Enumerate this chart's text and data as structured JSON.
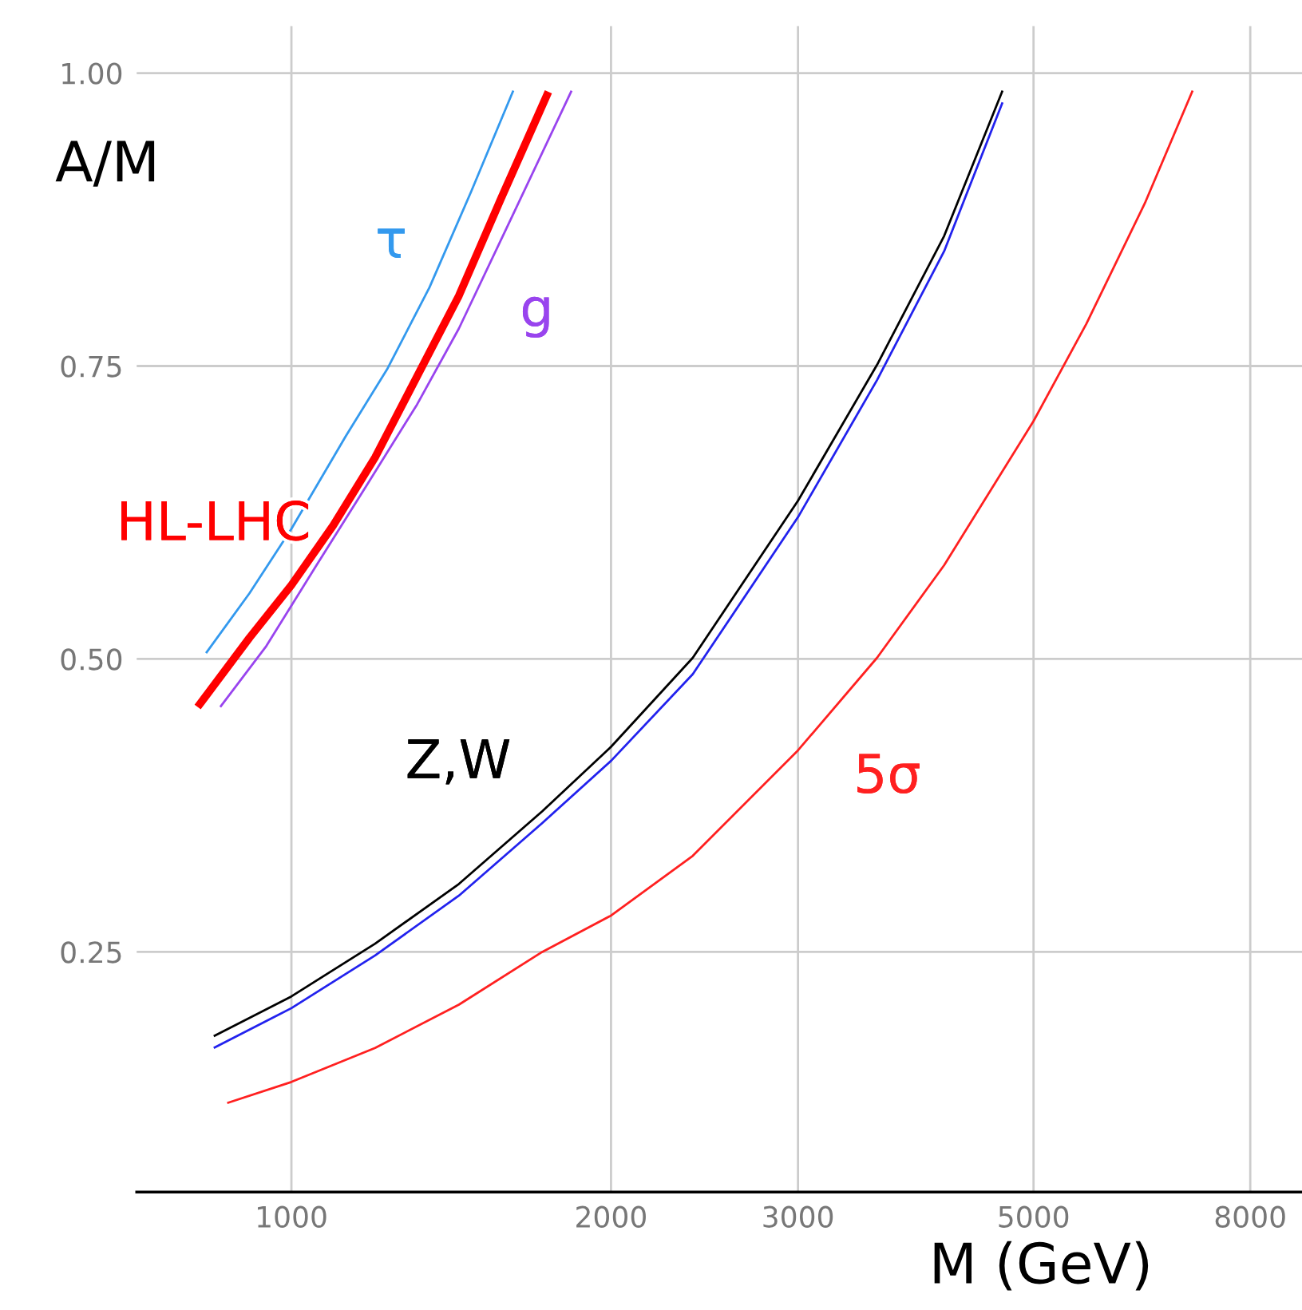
{
  "chart_data": {
    "type": "line",
    "xlabel": "M (GeV)",
    "ylabel": "A/M",
    "log": "x",
    "xlim": [
      715,
      8950
    ],
    "xticks": [
      1000,
      2000,
      3000,
      5000,
      8000
    ],
    "ylim": [
      0.045,
      1.04
    ],
    "yticks": [
      {
        "value": 0.25,
        "label": "0.25"
      },
      {
        "value": 0.5,
        "label": "0.50"
      },
      {
        "value": 0.75,
        "label": "0.75"
      },
      {
        "value": 1.0,
        "label": "1.00"
      }
    ],
    "grid": true,
    "line_style": "solid",
    "marker": "none",
    "series": [
      {
        "name": "Z,W",
        "color": "#000000",
        "x": [
          845,
          1000,
          1199,
          1438,
          1723,
          2000,
          2388,
          3000,
          3561,
          4119,
          4675
        ],
        "values": [
          0.178,
          0.212,
          0.257,
          0.308,
          0.37,
          0.425,
          0.501,
          0.635,
          0.751,
          0.861,
          0.985
        ]
      },
      {
        "color": "#2222ee",
        "x": [
          845,
          1000,
          1199,
          1438,
          1723,
          2000,
          2388,
          3000,
          3561,
          4119,
          4675
        ],
        "values": [
          0.168,
          0.202,
          0.247,
          0.298,
          0.36,
          0.413,
          0.487,
          0.621,
          0.738,
          0.848,
          0.975
        ]
      },
      {
        "name": "5σ",
        "color": "#ff2020",
        "x": [
          870,
          1000,
          1199,
          1438,
          1723,
          2000,
          2388,
          3000,
          3561,
          4119,
          5000,
          5607,
          6366,
          7060
        ],
        "values": [
          0.121,
          0.139,
          0.168,
          0.205,
          0.25,
          0.281,
          0.332,
          0.422,
          0.501,
          0.58,
          0.703,
          0.786,
          0.889,
          0.985
        ]
      },
      {
        "name": "HL-LHC",
        "color": "#ff0000",
        "x": [
          816,
          913,
          1000,
          1095,
          1199,
          1313,
          1438,
          1574,
          1746
        ],
        "values": [
          0.459,
          0.518,
          0.563,
          0.614,
          0.672,
          0.741,
          0.81,
          0.892,
          0.984
        ]
      },
      {
        "name": "τ",
        "color": "#3399ee",
        "x": [
          831,
          913,
          1000,
          1125,
          1232,
          1349,
          1477,
          1618
        ],
        "values": [
          0.505,
          0.556,
          0.611,
          0.69,
          0.748,
          0.817,
          0.899,
          0.985
        ]
      },
      {
        "name": "g",
        "color": "#9944ee",
        "x": [
          857,
          947,
          1056,
          1177,
          1313,
          1438,
          1603,
          1836
        ],
        "values": [
          0.459,
          0.511,
          0.58,
          0.648,
          0.717,
          0.782,
          0.872,
          0.985
        ]
      }
    ]
  }
}
